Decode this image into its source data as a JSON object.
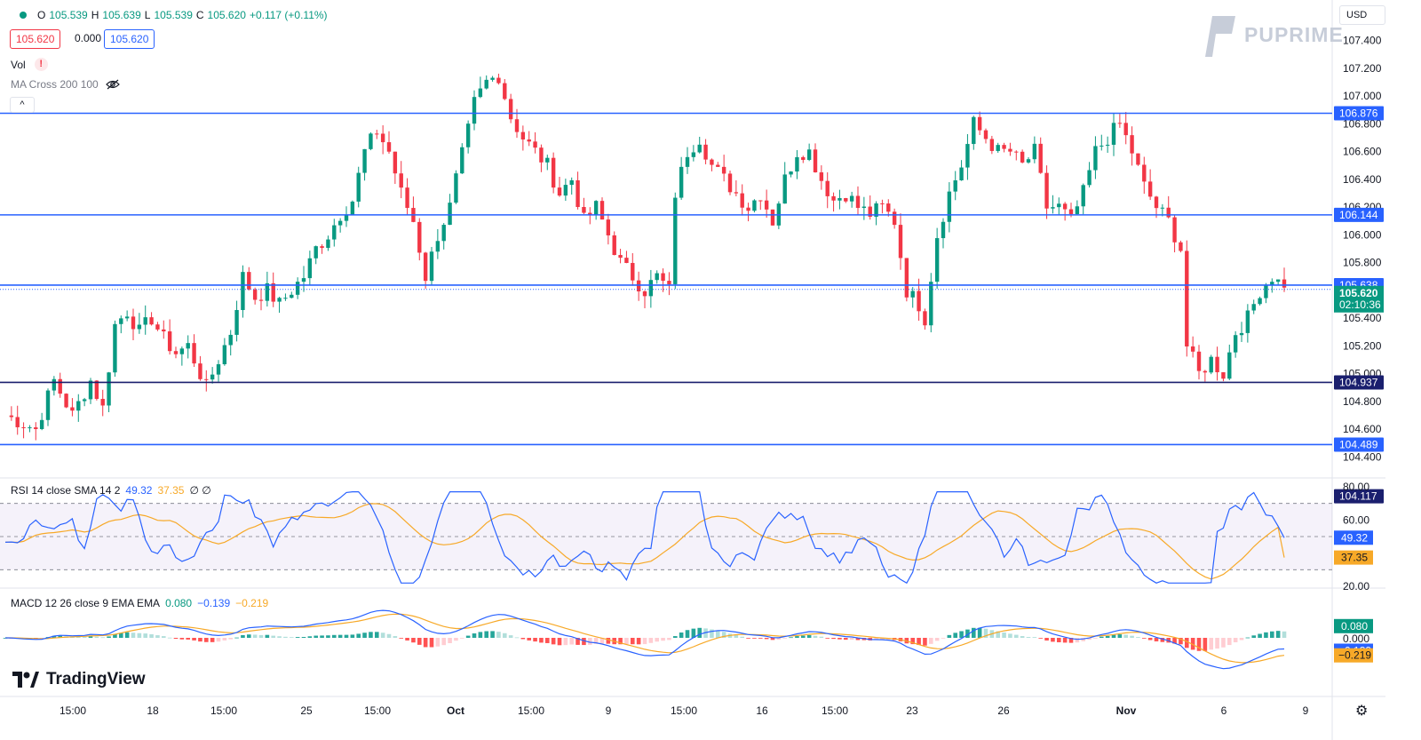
{
  "header": {
    "ohlc": [
      {
        "label": "O",
        "value": "105.539"
      },
      {
        "label": "H",
        "value": "105.639"
      },
      {
        "label": "L",
        "value": "105.539"
      },
      {
        "label": "C",
        "value": "105.620"
      }
    ],
    "change": "+0.117 (+0.11%)",
    "bid": "105.620",
    "spread": "0.000",
    "ask": "105.620",
    "currency": "USD"
  },
  "indicators": {
    "vol_label": "Vol",
    "vol_warning": "!",
    "ma_label": "MA Cross 200 100",
    "collapse_icon": "^",
    "rsi": {
      "label": "RSI 14 close SMA 14 2",
      "value": "49.32",
      "sma": "37.35",
      "extra": "∅ ∅"
    },
    "macd": {
      "label": "MACD 12 26 close 9 EMA EMA",
      "hist": "0.080",
      "macd": "−0.139",
      "signal": "−0.219"
    }
  },
  "brand": {
    "name": "PUPRIME"
  },
  "footer": {
    "logo_text": "TradingView"
  },
  "colors": {
    "up": "#089981",
    "down": "#f23645",
    "line": "#2962ff",
    "dark_line": "#1a1f6e",
    "rsi_line": "#2962ff",
    "rsi_sma": "#f7a928",
    "macd_line": "#2962ff",
    "signal_line": "#f7a928"
  },
  "chart_data": {
    "type": "candlestick",
    "price_axis": [
      "107.400",
      "107.200",
      "107.000",
      "106.800",
      "106.600",
      "106.400",
      "106.200",
      "106.000",
      "105.800",
      "105.400",
      "105.200",
      "105.000",
      "104.800",
      "104.600",
      "104.400"
    ],
    "price_range": [
      104.3,
      107.5
    ],
    "time_axis": [
      "15:00",
      "18",
      "15:00",
      "25",
      "15:00",
      "Oct",
      "15:00",
      "9",
      "15:00",
      "16",
      "15:00",
      "23",
      "26",
      "Nov",
      "6",
      "9"
    ],
    "horizontal_levels": [
      {
        "value": 106.876,
        "label": "106.876",
        "style": "blue"
      },
      {
        "value": 106.144,
        "label": "106.144",
        "style": "blue"
      },
      {
        "value": 105.638,
        "label": "105.638",
        "style": "blue"
      },
      {
        "value": 104.937,
        "label": "104.937",
        "style": "dark"
      },
      {
        "value": 104.489,
        "label": "104.489",
        "style": "blue"
      },
      {
        "value": 104.117,
        "label": "104.117",
        "style": "dark-tag"
      }
    ],
    "last_price": {
      "value": 105.62,
      "label": "105.620",
      "countdown": "02:10:36"
    },
    "close_path": [
      [
        0,
        104.7
      ],
      [
        5,
        104.6
      ],
      [
        8,
        104.95
      ],
      [
        11,
        104.7
      ],
      [
        14,
        104.95
      ],
      [
        16,
        104.75
      ],
      [
        18,
        105.35
      ],
      [
        20,
        105.45
      ],
      [
        22,
        105.3
      ],
      [
        24,
        105.4
      ],
      [
        26,
        105.25
      ],
      [
        28,
        105.15
      ],
      [
        30,
        105.2
      ],
      [
        33,
        104.9
      ],
      [
        35,
        105.1
      ],
      [
        37,
        105.3
      ],
      [
        39,
        105.7
      ],
      [
        41,
        105.55
      ],
      [
        43,
        105.6
      ],
      [
        45,
        105.5
      ],
      [
        47,
        105.6
      ],
      [
        49,
        105.7
      ],
      [
        51,
        105.9
      ],
      [
        53,
        106.0
      ],
      [
        55,
        106.15
      ],
      [
        57,
        106.25
      ],
      [
        59,
        106.6
      ],
      [
        61,
        106.75
      ],
      [
        63,
        106.6
      ],
      [
        65,
        106.3
      ],
      [
        67,
        106.1
      ],
      [
        69,
        105.7
      ],
      [
        71,
        106.0
      ],
      [
        73,
        106.2
      ],
      [
        74,
        106.4
      ],
      [
        76,
        106.75
      ],
      [
        77,
        106.95
      ],
      [
        79,
        107.1
      ],
      [
        81,
        107.15
      ],
      [
        83,
        106.85
      ],
      [
        85,
        106.7
      ],
      [
        87,
        106.6
      ],
      [
        89,
        106.5
      ],
      [
        91,
        106.3
      ],
      [
        93,
        106.4
      ],
      [
        95,
        106.1
      ],
      [
        97,
        106.2
      ],
      [
        99,
        106.0
      ],
      [
        101,
        105.8
      ],
      [
        103,
        105.7
      ],
      [
        105,
        105.6
      ],
      [
        107,
        105.7
      ],
      [
        109,
        105.6
      ],
      [
        110,
        106.3
      ],
      [
        112,
        106.6
      ],
      [
        114,
        106.7
      ],
      [
        116,
        106.5
      ],
      [
        118,
        106.4
      ],
      [
        120,
        106.3
      ],
      [
        122,
        106.2
      ],
      [
        124,
        106.3
      ],
      [
        126,
        106.1
      ],
      [
        128,
        106.4
      ],
      [
        130,
        106.6
      ],
      [
        132,
        106.6
      ],
      [
        134,
        106.4
      ],
      [
        136,
        106.25
      ],
      [
        138,
        106.3
      ],
      [
        140,
        106.2
      ],
      [
        142,
        106.15
      ],
      [
        144,
        106.2
      ],
      [
        146,
        106.1
      ],
      [
        148,
        105.6
      ],
      [
        150,
        105.5
      ],
      [
        151,
        105.4
      ],
      [
        153,
        106.0
      ],
      [
        155,
        106.3
      ],
      [
        157,
        106.5
      ],
      [
        159,
        106.8
      ],
      [
        161,
        106.7
      ],
      [
        163,
        106.6
      ],
      [
        165,
        106.6
      ],
      [
        167,
        106.5
      ],
      [
        169,
        106.6
      ],
      [
        171,
        106.2
      ],
      [
        173,
        106.2
      ],
      [
        175,
        106.1
      ],
      [
        177,
        106.3
      ],
      [
        179,
        106.6
      ],
      [
        181,
        106.7
      ],
      [
        183,
        106.8
      ],
      [
        185,
        106.6
      ],
      [
        187,
        106.35
      ],
      [
        189,
        106.2
      ],
      [
        191,
        106.1
      ],
      [
        193,
        105.9
      ],
      [
        194,
        105.2
      ],
      [
        196,
        105.0
      ],
      [
        198,
        105.1
      ],
      [
        200,
        105.0
      ],
      [
        202,
        105.3
      ],
      [
        204,
        105.4
      ],
      [
        206,
        105.6
      ],
      [
        208,
        105.7
      ],
      [
        210,
        105.62
      ]
    ],
    "rsi": {
      "range": [
        20,
        80
      ],
      "levels": [
        70,
        50,
        30
      ],
      "axis": [
        "80.00",
        "60.00",
        "20.00"
      ],
      "value": 49.32,
      "sma": 37.35
    },
    "macd": {
      "axis": [
        "0.080",
        "0.000"
      ],
      "hist": 0.08,
      "macd": -0.139,
      "signal": -0.219
    }
  }
}
